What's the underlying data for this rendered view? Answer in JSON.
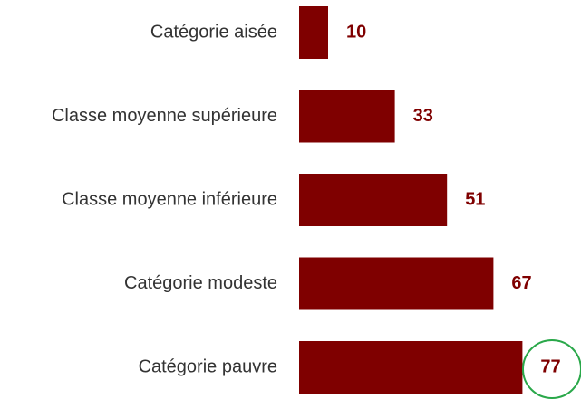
{
  "chart_data": {
    "type": "bar",
    "orientation": "horizontal",
    "categories": [
      "Catégorie aisée",
      "Classe moyenne supérieure",
      "Classe moyenne inférieure",
      "Catégorie modeste",
      "Catégorie pauvre"
    ],
    "values": [
      10,
      33,
      51,
      67,
      77
    ],
    "color": "#7f0000"
  }
}
